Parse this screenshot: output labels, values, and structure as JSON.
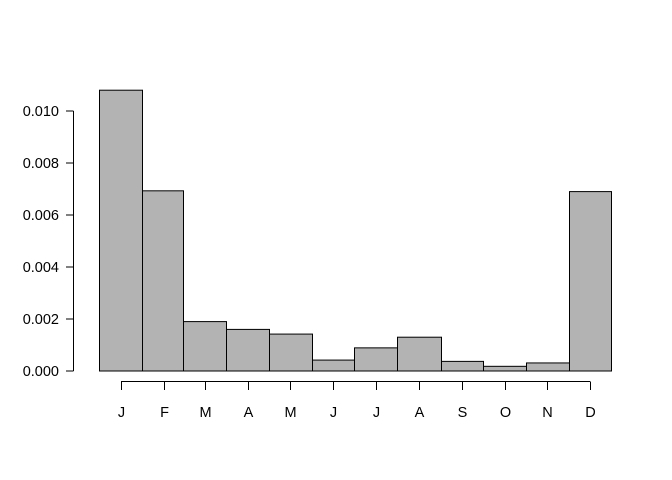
{
  "chart_data": {
    "type": "bar",
    "categories": [
      "J",
      "F",
      "M",
      "A",
      "M",
      "J",
      "J",
      "A",
      "S",
      "O",
      "N",
      "D"
    ],
    "values": [
      0.0108,
      0.00693,
      0.0019,
      0.0016,
      0.00142,
      0.00042,
      0.00089,
      0.0013,
      0.00037,
      0.00018,
      0.00031,
      0.0069
    ],
    "yticks": [
      "0.000",
      "0.002",
      "0.004",
      "0.006",
      "0.008",
      "0.010"
    ],
    "ylim": [
      0,
      0.0108
    ],
    "bar_color": "#b3b3b3",
    "grid": false
  }
}
